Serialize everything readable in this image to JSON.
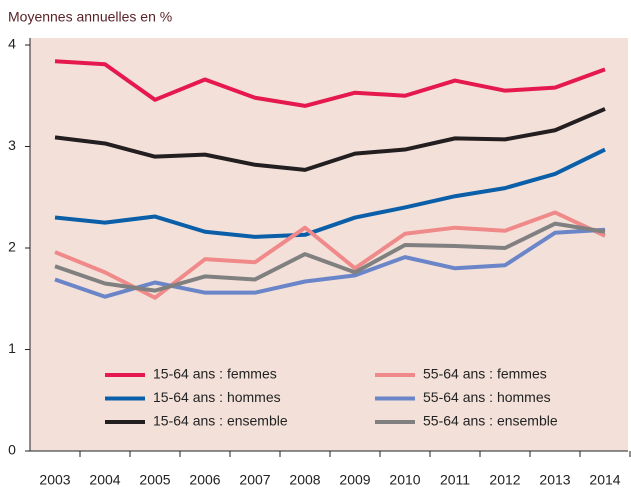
{
  "chart_data": {
    "type": "line",
    "title": "Moyennes annuelles en %",
    "categories": [
      "2003",
      "2004",
      "2005",
      "2006",
      "2007",
      "2008",
      "2009",
      "2010",
      "2011",
      "2012",
      "2013",
      "2014"
    ],
    "ylim": [
      0,
      4
    ],
    "yticks": [
      0,
      1,
      2,
      3,
      4
    ],
    "series": [
      {
        "name": "15-64 ans : femmes",
        "color": "#e5194e",
        "values": [
          3.84,
          3.81,
          3.46,
          3.66,
          3.48,
          3.4,
          3.53,
          3.5,
          3.65,
          3.55,
          3.58,
          3.76
        ]
      },
      {
        "name": "15-64 ans : hommes",
        "color": "#0b5fa8",
        "values": [
          2.3,
          2.25,
          2.31,
          2.16,
          2.11,
          2.13,
          2.3,
          2.4,
          2.51,
          2.59,
          2.73,
          2.97
        ]
      },
      {
        "name": "15-64 ans : ensemble",
        "color": "#231f20",
        "values": [
          3.09,
          3.03,
          2.9,
          2.92,
          2.82,
          2.77,
          2.93,
          2.97,
          3.08,
          3.07,
          3.16,
          3.37
        ]
      },
      {
        "name": "55-64 ans : femmes",
        "color": "#f08a8a",
        "values": [
          1.96,
          1.76,
          1.51,
          1.89,
          1.86,
          2.2,
          1.8,
          2.14,
          2.2,
          2.17,
          2.35,
          2.12
        ]
      },
      {
        "name": "55-64 ans : hommes",
        "color": "#6b85c9",
        "values": [
          1.69,
          1.52,
          1.66,
          1.56,
          1.56,
          1.67,
          1.73,
          1.91,
          1.8,
          1.83,
          2.15,
          2.18
        ]
      },
      {
        "name": "55-64 ans : ensemble",
        "color": "#808080",
        "values": [
          1.82,
          1.65,
          1.58,
          1.72,
          1.69,
          1.94,
          1.76,
          2.03,
          2.02,
          2.0,
          2.24,
          2.16
        ]
      }
    ]
  }
}
